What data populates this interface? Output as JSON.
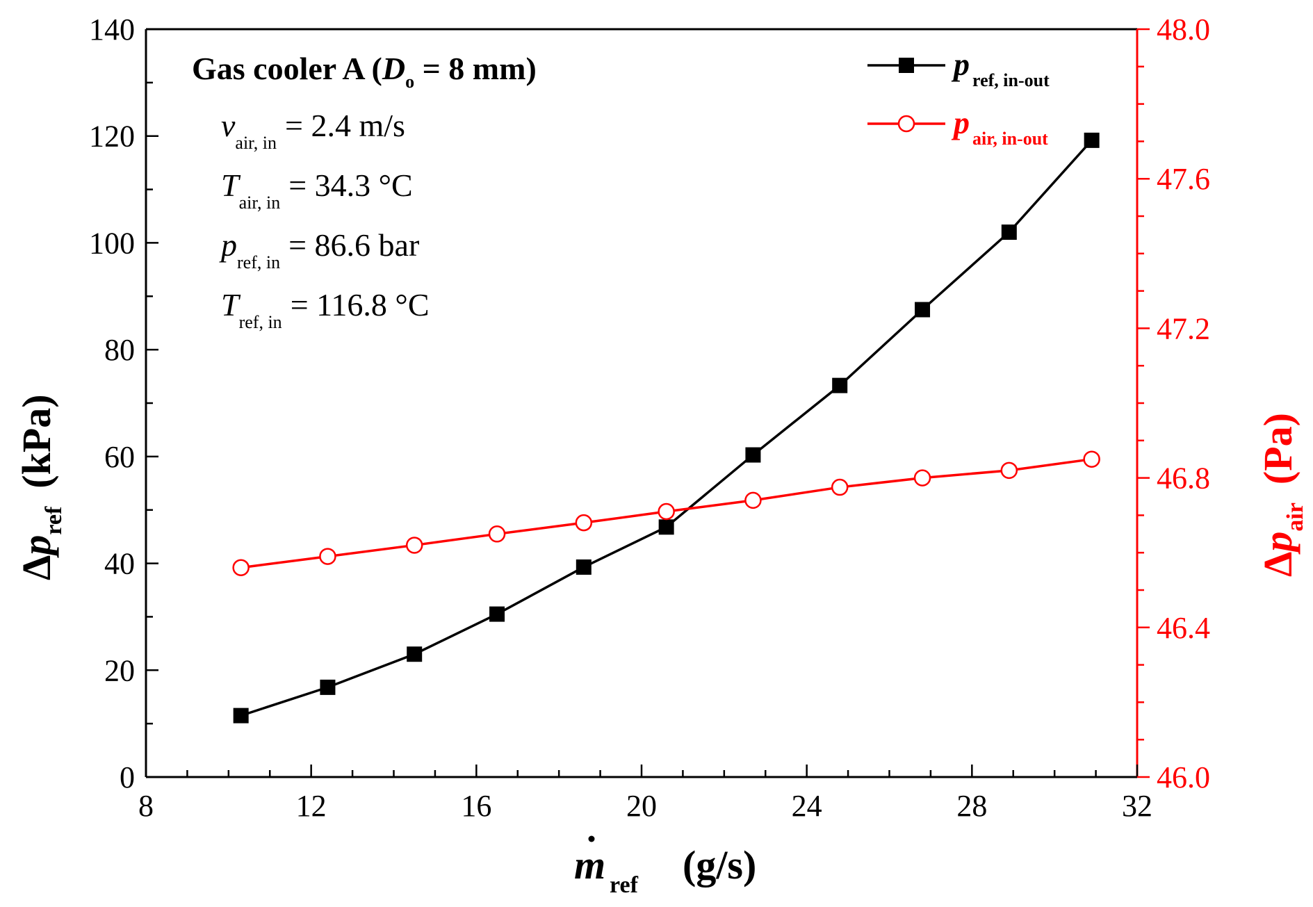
{
  "chart_data": {
    "type": "line",
    "title": "Gas cooler A",
    "title_subscript_label": "D",
    "title_subscript": "o",
    "title_value": "= 8 mm",
    "annotations": [
      {
        "sym": "v",
        "sub": "air, in",
        "value": "= 2.4 m/s"
      },
      {
        "sym": "T",
        "sub": "air, in",
        "value": "= 34.3 °C"
      },
      {
        "sym": "p",
        "sub": "ref, in",
        "value": "= 86.6 bar"
      },
      {
        "sym": "T",
        "sub": "ref, in",
        "value": "= 116.8 °C"
      }
    ],
    "xlabel": {
      "dot": "m",
      "sub": "ref",
      "unit": "(g/s)"
    },
    "ylabel_left": {
      "prefix": "Δ",
      "sym": "p",
      "sub": "ref",
      "unit": "(kPa)"
    },
    "ylabel_right": {
      "prefix": "Δ",
      "sym": "p",
      "sub": "air",
      "unit": "(Pa)"
    },
    "xlim": [
      8,
      32
    ],
    "ylim_left": [
      0,
      140
    ],
    "ylim_right": [
      46.0,
      48.0
    ],
    "x_ticks": [
      "8",
      "12",
      "16",
      "20",
      "24",
      "28",
      "32"
    ],
    "y_left_ticks": [
      "0",
      "20",
      "40",
      "60",
      "80",
      "100",
      "120",
      "140"
    ],
    "y_right_ticks": [
      "46.0",
      "46.4",
      "46.8",
      "47.2",
      "47.6",
      "48.0"
    ],
    "x": [
      10.3,
      12.4,
      14.5,
      16.5,
      18.6,
      20.6,
      22.7,
      24.8,
      26.8,
      28.9,
      30.9
    ],
    "series": [
      {
        "name": "p",
        "sub": "ref, in-out",
        "axis": "left",
        "marker": "filled-square",
        "color": "#000000",
        "values": [
          11.5,
          16.8,
          23.0,
          30.5,
          39.3,
          46.8,
          60.3,
          73.3,
          87.5,
          102.0,
          119.2
        ]
      },
      {
        "name": "p",
        "sub": "air, in-out",
        "axis": "right",
        "marker": "open-circle",
        "color": "#ff0000",
        "values": [
          46.56,
          46.59,
          46.62,
          46.65,
          46.68,
          46.71,
          46.74,
          46.775,
          46.8,
          46.82,
          46.85
        ]
      }
    ]
  }
}
